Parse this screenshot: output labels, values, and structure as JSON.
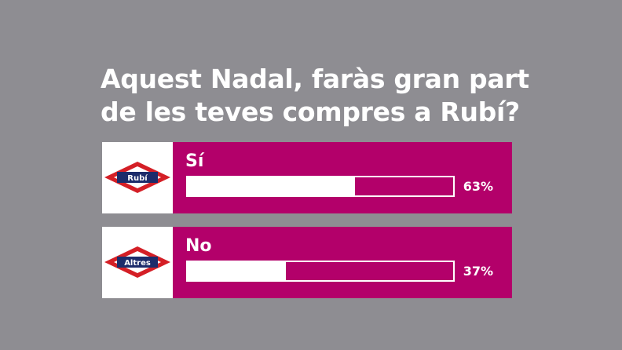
{
  "question": {
    "line1": "Aquest Nadal, faràs gran part",
    "line2": "de les teves compres a Rubí?"
  },
  "options": [
    {
      "label": "Sí",
      "badge": "Rubí",
      "percent_label": "63%",
      "value": 63
    },
    {
      "label": "No",
      "badge": "Altres",
      "percent_label": "37%",
      "value": 37
    }
  ],
  "colors": {
    "background": "#8e8d92",
    "accent": "#b3006a",
    "logo_red": "#d41f26",
    "logo_blue": "#1c2c6b"
  },
  "chart_data": {
    "type": "bar",
    "orientation": "horizontal",
    "title": "Aquest Nadal, faràs gran part de les teves compres a Rubí?",
    "categories": [
      "Sí",
      "No"
    ],
    "values": [
      63,
      37
    ],
    "ylim": [
      0,
      100
    ]
  }
}
